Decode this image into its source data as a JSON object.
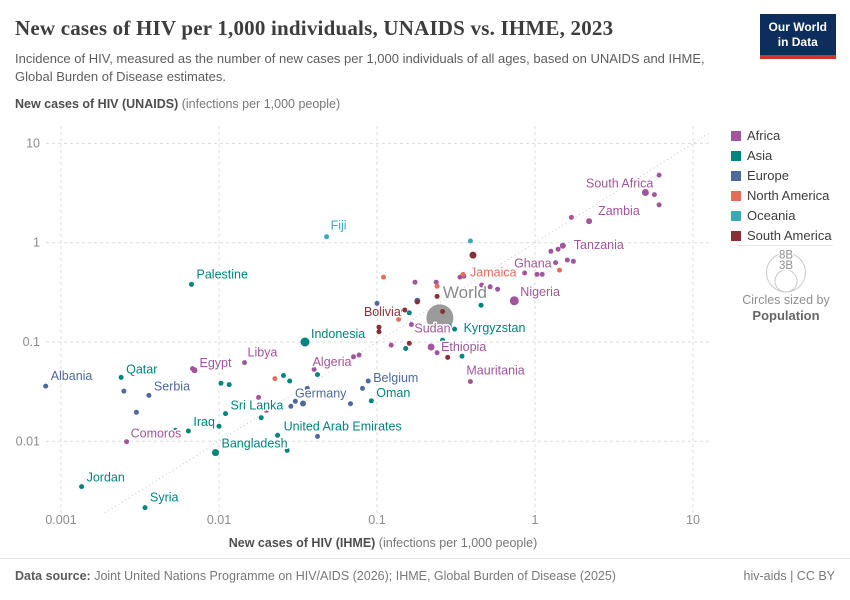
{
  "header": {
    "title": "New cases of HIV per 1,000 individuals, UNAIDS vs. IHME, 2023",
    "subtitle": "Incidence of HIV, measured as the number of new cases per 1,000 individuals of all ages, based on UNAIDS and IHME, Global Burden of Disease estimates.",
    "logo_line1": "Our World",
    "logo_line2": "in Data"
  },
  "axes": {
    "y_title": "New cases of HIV (UNAIDS)",
    "y_unit": " (infections per 1,000 people)",
    "x_title": "New cases of HIV (IHME)",
    "x_unit": " (infections per 1,000 people)",
    "x_ticks": [
      "0.001",
      "0.01",
      "0.1",
      "1",
      "10"
    ],
    "x_tick_values": [
      0.001,
      0.01,
      0.1,
      1,
      10
    ],
    "y_ticks": [
      "10",
      "1",
      "0.1",
      "0.01"
    ],
    "y_tick_values": [
      10,
      1,
      0.1,
      0.01
    ]
  },
  "legend": {
    "items": [
      {
        "label": "Africa",
        "color": "#a2559c"
      },
      {
        "label": "Asia",
        "color": "#00847e"
      },
      {
        "label": "Europe",
        "color": "#4c6a9c"
      },
      {
        "label": "North America",
        "color": "#e56e5a"
      },
      {
        "label": "Oceania",
        "color": "#38aaba"
      },
      {
        "label": "South America",
        "color": "#883039"
      }
    ],
    "size_legend": {
      "outer_label": "8B",
      "inner_label": "3B",
      "caption_top": "Circles sized by",
      "caption_bottom": "Population"
    }
  },
  "footer": {
    "source_label": "Data source:",
    "source_text": " Joint United Nations Programme on HIV/AIDS (2026); IHME, Global Burden of Disease (2025)",
    "license": "hiv-aids | CC BY"
  },
  "chart_data": {
    "type": "scatter",
    "x_scale": "log",
    "y_scale": "log",
    "xlabel": "New cases of HIV (IHME) (infections per 1,000 people)",
    "ylabel": "New cases of HIV (UNAIDS) (infections per 1,000 people)",
    "x_range": [
      0.001,
      10
    ],
    "y_range": [
      0.002,
      10
    ],
    "grid": true,
    "identity_line": true,
    "series": [
      {
        "name": "World",
        "color": "#9b9b9b",
        "points": [
          {
            "x": 0.25,
            "y": 0.175,
            "r": 13.5,
            "label": "World",
            "a": "start",
            "dx": 3,
            "dy": -20,
            "fs": 17,
            "lc": "#8a8a8a"
          }
        ]
      },
      {
        "name": "Africa",
        "color": "#a2559c",
        "points": [
          {
            "x": 5.0,
            "y": 3.2,
            "r": 3.5,
            "label": "South Africa",
            "a": "end",
            "dx": 8,
            "dy": -5
          },
          {
            "x": 5.7,
            "y": 3.05
          },
          {
            "x": 6.1,
            "y": 4.8
          },
          {
            "x": 6.1,
            "y": 2.4
          },
          {
            "x": 2.2,
            "y": 1.65,
            "r": 3,
            "label": "Zambia",
            "a": "start",
            "dx": 9,
            "dy": -6
          },
          {
            "x": 1.7,
            "y": 1.8
          },
          {
            "x": 1.26,
            "y": 0.82
          },
          {
            "x": 1.4,
            "y": 0.86
          },
          {
            "x": 1.5,
            "y": 0.93,
            "r": 3,
            "label": "Tanzania",
            "a": "start",
            "dx": 11,
            "dy": 3
          },
          {
            "x": 1.03,
            "y": 0.48
          },
          {
            "x": 1.11,
            "y": 0.48
          },
          {
            "x": 1.6,
            "y": 0.67
          },
          {
            "x": 1.75,
            "y": 0.65
          },
          {
            "x": 0.86,
            "y": 0.495
          },
          {
            "x": 1.35,
            "y": 0.63,
            "label": "Ghana",
            "a": "end",
            "dx": -4,
            "dy": 5
          },
          {
            "x": 0.52,
            "y": 0.36
          },
          {
            "x": 0.58,
            "y": 0.34
          },
          {
            "x": 0.46,
            "y": 0.375
          },
          {
            "x": 0.335,
            "y": 0.45
          },
          {
            "x": 0.355,
            "y": 0.46
          },
          {
            "x": 0.174,
            "y": 0.4
          },
          {
            "x": 0.237,
            "y": 0.4
          },
          {
            "x": 0.74,
            "y": 0.26,
            "r": 4.5,
            "label": "Nigeria",
            "a": "start",
            "dx": 6,
            "dy": -5
          },
          {
            "x": 0.165,
            "y": 0.15,
            "label": "Sudan",
            "a": "start",
            "dx": 3,
            "dy": 8
          },
          {
            "x": 0.22,
            "y": 0.089,
            "r": 3.5,
            "label": "Ethiopia",
            "a": "start",
            "dx": 10,
            "dy": 4
          },
          {
            "x": 0.123,
            "y": 0.093
          },
          {
            "x": 0.18,
            "y": 0.133
          },
          {
            "x": 0.24,
            "y": 0.078
          },
          {
            "x": 0.39,
            "y": 0.04,
            "label": "Mauritania",
            "a": "start",
            "dx": -4,
            "dy": -7
          },
          {
            "x": 0.071,
            "y": 0.071,
            "label": "Algeria",
            "a": "end",
            "dx": -2,
            "dy": 9
          },
          {
            "x": 0.077,
            "y": 0.074
          },
          {
            "x": 0.04,
            "y": 0.053
          },
          {
            "x": 0.0145,
            "y": 0.062,
            "label": "Libya",
            "a": "start",
            "dx": 3,
            "dy": -6
          },
          {
            "x": 0.007,
            "y": 0.052,
            "r": 3,
            "label": "Egypt",
            "a": "start",
            "dx": 5,
            "dy": -3
          },
          {
            "x": 0.0068,
            "y": 0.054
          },
          {
            "x": 0.02,
            "y": 0.0205
          },
          {
            "x": 0.0178,
            "y": 0.0277
          },
          {
            "x": 0.0026,
            "y": 0.0099,
            "label": "Comoros",
            "a": "start",
            "dx": 4,
            "dy": -4
          }
        ]
      },
      {
        "name": "Asia",
        "color": "#00847e",
        "points": [
          {
            "x": 0.0067,
            "y": 0.38,
            "label": "Palestine",
            "a": "start",
            "dx": 5,
            "dy": -6
          },
          {
            "x": 0.0024,
            "y": 0.044,
            "label": "Qatar",
            "a": "start",
            "dx": 5,
            "dy": -4
          },
          {
            "x": 0.035,
            "y": 0.1,
            "r": 4.5,
            "label": "Indonesia",
            "a": "start",
            "dx": 6,
            "dy": -4
          },
          {
            "x": 0.31,
            "y": 0.135,
            "label": "Kyrgyzstan",
            "a": "start",
            "dx": 9,
            "dy": 3
          },
          {
            "x": 0.287,
            "y": 0.144
          },
          {
            "x": 0.26,
            "y": 0.104
          },
          {
            "x": 0.345,
            "y": 0.072
          },
          {
            "x": 0.455,
            "y": 0.235
          },
          {
            "x": 0.152,
            "y": 0.086
          },
          {
            "x": 0.16,
            "y": 0.197
          },
          {
            "x": 0.011,
            "y": 0.019,
            "label": "Sri Lanka",
            "a": "start",
            "dx": 5,
            "dy": -4
          },
          {
            "x": 0.0064,
            "y": 0.0127,
            "label": "Iraq",
            "a": "start",
            "dx": 5,
            "dy": -5
          },
          {
            "x": 0.0053,
            "y": 0.0129
          },
          {
            "x": 0.01,
            "y": 0.0142
          },
          {
            "x": 0.0095,
            "y": 0.0077,
            "r": 3.5,
            "label": "Bangladesh",
            "a": "start",
            "dx": 6,
            "dy": -5
          },
          {
            "x": 0.0235,
            "y": 0.0115,
            "label": "United Arab Emirates",
            "a": "start",
            "dx": 6,
            "dy": -5
          },
          {
            "x": 0.092,
            "y": 0.0255,
            "label": "Oman",
            "a": "start",
            "dx": 5,
            "dy": -4
          },
          {
            "x": 0.00135,
            "y": 0.0035,
            "label": "Jordan",
            "a": "start",
            "dx": 5,
            "dy": -5
          },
          {
            "x": 0.0034,
            "y": 0.00215,
            "label": "Syria",
            "a": "start",
            "dx": 5,
            "dy": -6
          },
          {
            "x": 0.0103,
            "y": 0.0385
          },
          {
            "x": 0.0116,
            "y": 0.0372
          },
          {
            "x": 0.028,
            "y": 0.0405
          },
          {
            "x": 0.0256,
            "y": 0.046
          },
          {
            "x": 0.0185,
            "y": 0.0173
          },
          {
            "x": 0.027,
            "y": 0.0081
          },
          {
            "x": 0.042,
            "y": 0.047
          }
        ]
      },
      {
        "name": "Europe",
        "color": "#4c6a9c",
        "points": [
          {
            "x": 0.0008,
            "y": 0.036,
            "label": "Albania",
            "a": "start",
            "dx": 5,
            "dy": -6
          },
          {
            "x": 0.0036,
            "y": 0.029,
            "label": "Serbia",
            "a": "start",
            "dx": 5,
            "dy": -5
          },
          {
            "x": 0.034,
            "y": 0.024,
            "r": 3,
            "label": "Germany",
            "a": "start",
            "dx": -8,
            "dy": -6
          },
          {
            "x": 0.088,
            "y": 0.0405,
            "label": "Belgium",
            "a": "start",
            "dx": 5,
            "dy": 1
          },
          {
            "x": 0.1,
            "y": 0.245
          },
          {
            "x": 0.18,
            "y": 0.26,
            "r": 3
          },
          {
            "x": 0.0025,
            "y": 0.032
          },
          {
            "x": 0.003,
            "y": 0.0196
          },
          {
            "x": 0.0285,
            "y": 0.0225
          },
          {
            "x": 0.0304,
            "y": 0.0253
          },
          {
            "x": 0.0362,
            "y": 0.0341
          },
          {
            "x": 0.068,
            "y": 0.0239
          },
          {
            "x": 0.081,
            "y": 0.0341
          },
          {
            "x": 0.042,
            "y": 0.0112
          }
        ]
      },
      {
        "name": "North America",
        "color": "#e56e5a",
        "points": [
          {
            "x": 0.35,
            "y": 0.48,
            "label": "Jamaica",
            "a": "start",
            "dx": 7,
            "dy": 2
          },
          {
            "x": 0.11,
            "y": 0.45
          },
          {
            "x": 0.24,
            "y": 0.365
          },
          {
            "x": 0.137,
            "y": 0.169
          },
          {
            "x": 0.139,
            "y": 0.205
          },
          {
            "x": 1.43,
            "y": 0.53
          },
          {
            "x": 0.0226,
            "y": 0.0428
          }
        ]
      },
      {
        "name": "Oceania",
        "color": "#38aaba",
        "points": [
          {
            "x": 0.048,
            "y": 1.15,
            "label": "Fiji",
            "a": "start",
            "dx": 4,
            "dy": -7
          },
          {
            "x": 0.39,
            "y": 1.04
          }
        ]
      },
      {
        "name": "South America",
        "color": "#883039",
        "points": [
          {
            "x": 0.15,
            "y": 0.21,
            "label": "Bolivia",
            "a": "end",
            "dx": -4,
            "dy": 6
          },
          {
            "x": 0.405,
            "y": 0.75,
            "r": 3.5
          },
          {
            "x": 0.24,
            "y": 0.288
          },
          {
            "x": 0.097,
            "y": 0.2
          },
          {
            "x": 0.103,
            "y": 0.141
          },
          {
            "x": 0.103,
            "y": 0.127
          },
          {
            "x": 0.16,
            "y": 0.097
          },
          {
            "x": 0.18,
            "y": 0.253
          },
          {
            "x": 0.26,
            "y": 0.203
          },
          {
            "x": 0.28,
            "y": 0.07
          }
        ]
      }
    ]
  }
}
